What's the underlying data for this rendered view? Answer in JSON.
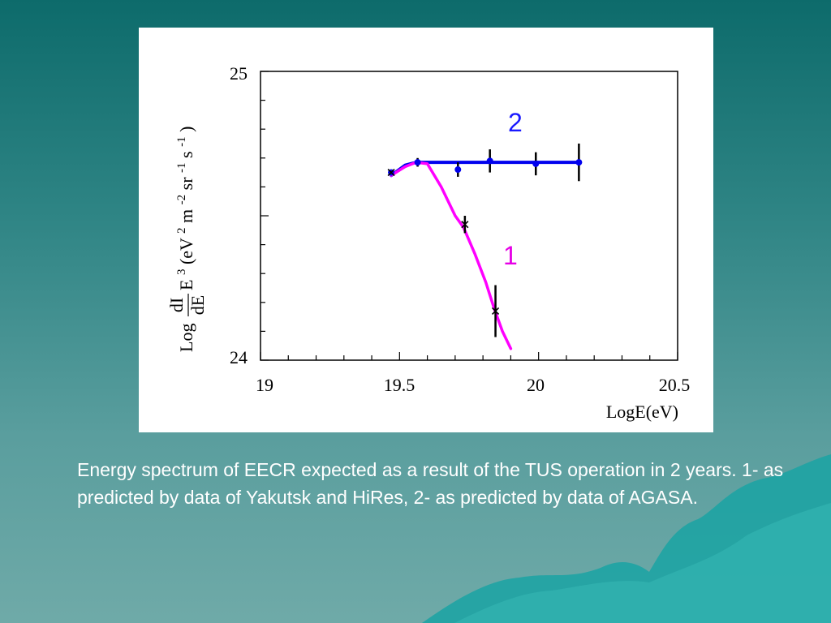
{
  "caption": "Energy spectrum of EECR expected as a result of the TUS operation in 2 years. 1- as predicted by data of Yakutsk and HiRes, 2- as predicted by data of AGASA.",
  "colors": {
    "series_1": "#ff00ff",
    "series_2": "#0000ee",
    "error_bars": "#000000"
  },
  "chart_data": {
    "type": "line",
    "xlabel": "LogE(eV)",
    "ylabel_parts": {
      "log": "Log",
      "frac_num": "dI",
      "frac_den": "dE",
      "rest": "E",
      "sup3": "3",
      "unit_open": "(eV",
      "sup2a": "2",
      "unit_m": "m",
      "sup2b": "-2",
      "unit_sr": "sr",
      "sup1a": "-1",
      "unit_s": "s",
      "sup1b": "-1",
      "unit_close": ")"
    },
    "xlim": [
      19,
      20.5
    ],
    "ylim": [
      24,
      25
    ],
    "x_tick_labels": [
      "19",
      "19.5",
      "20",
      "20.5"
    ],
    "y_tick_labels": [
      "24",
      "25"
    ],
    "x_ticks": [
      19,
      19.5,
      20,
      20.5
    ],
    "y_ticks": [
      24,
      25
    ],
    "grid": false,
    "series": [
      {
        "name": "1",
        "color": "#ff00ff",
        "curve": [
          [
            19.47,
            24.64
          ],
          [
            19.52,
            24.67
          ],
          [
            19.56,
            24.685
          ],
          [
            19.6,
            24.68
          ],
          [
            19.65,
            24.6
          ],
          [
            19.7,
            24.5
          ],
          [
            19.73,
            24.46
          ],
          [
            19.77,
            24.37
          ],
          [
            19.81,
            24.27
          ],
          [
            19.84,
            24.18
          ],
          [
            19.87,
            24.1
          ],
          [
            19.9,
            24.04
          ]
        ],
        "points": [
          {
            "x": 19.47,
            "y": 24.65,
            "err": 0.0
          },
          {
            "x": 19.735,
            "y": 24.47,
            "err": 0.03
          },
          {
            "x": 19.845,
            "y": 24.17,
            "err": 0.09
          }
        ]
      },
      {
        "name": "2",
        "color": "#0000ee",
        "curve": [
          [
            19.47,
            24.64
          ],
          [
            19.52,
            24.675
          ],
          [
            19.56,
            24.685
          ],
          [
            19.6,
            24.685
          ],
          [
            20.15,
            24.685
          ]
        ],
        "points": [
          {
            "x": 19.47,
            "y": 24.65,
            "err": 0.0
          },
          {
            "x": 19.565,
            "y": 24.685,
            "err": 0.015
          },
          {
            "x": 19.71,
            "y": 24.66,
            "err": 0.025
          },
          {
            "x": 19.825,
            "y": 24.69,
            "err": 0.04
          },
          {
            "x": 19.99,
            "y": 24.68,
            "err": 0.04
          },
          {
            "x": 20.145,
            "y": 24.685,
            "err": 0.065
          }
        ]
      }
    ]
  }
}
